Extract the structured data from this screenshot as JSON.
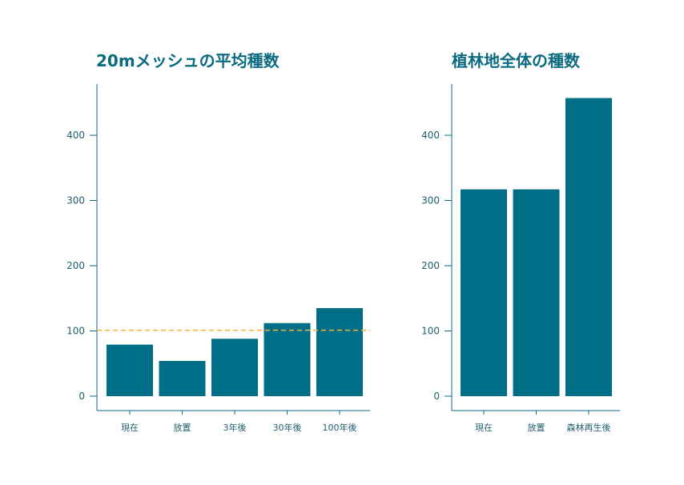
{
  "colors": {
    "bar": "#006e87",
    "axis": "#0b6b80",
    "reference_line": "#f2b233",
    "text": "#1f5f6e"
  },
  "chart_data": [
    {
      "type": "bar",
      "title": "20mメッシュの平均種数",
      "categories": [
        "現在",
        "放置",
        "3年後",
        "30年後",
        "100年後"
      ],
      "values": [
        79,
        54,
        88,
        112,
        135
      ],
      "yticks": [
        0,
        100,
        200,
        300,
        400
      ],
      "ylim": [
        0,
        480
      ],
      "reference_line": {
        "value": 101,
        "style": "dashed"
      },
      "grid": false
    },
    {
      "type": "bar",
      "title": "植林地全体の種数",
      "categories": [
        "現在",
        "放置",
        "森林再生後"
      ],
      "values": [
        317,
        317,
        457
      ],
      "yticks": [
        0,
        100,
        200,
        300,
        400
      ],
      "ylim": [
        0,
        480
      ],
      "grid": false
    }
  ]
}
